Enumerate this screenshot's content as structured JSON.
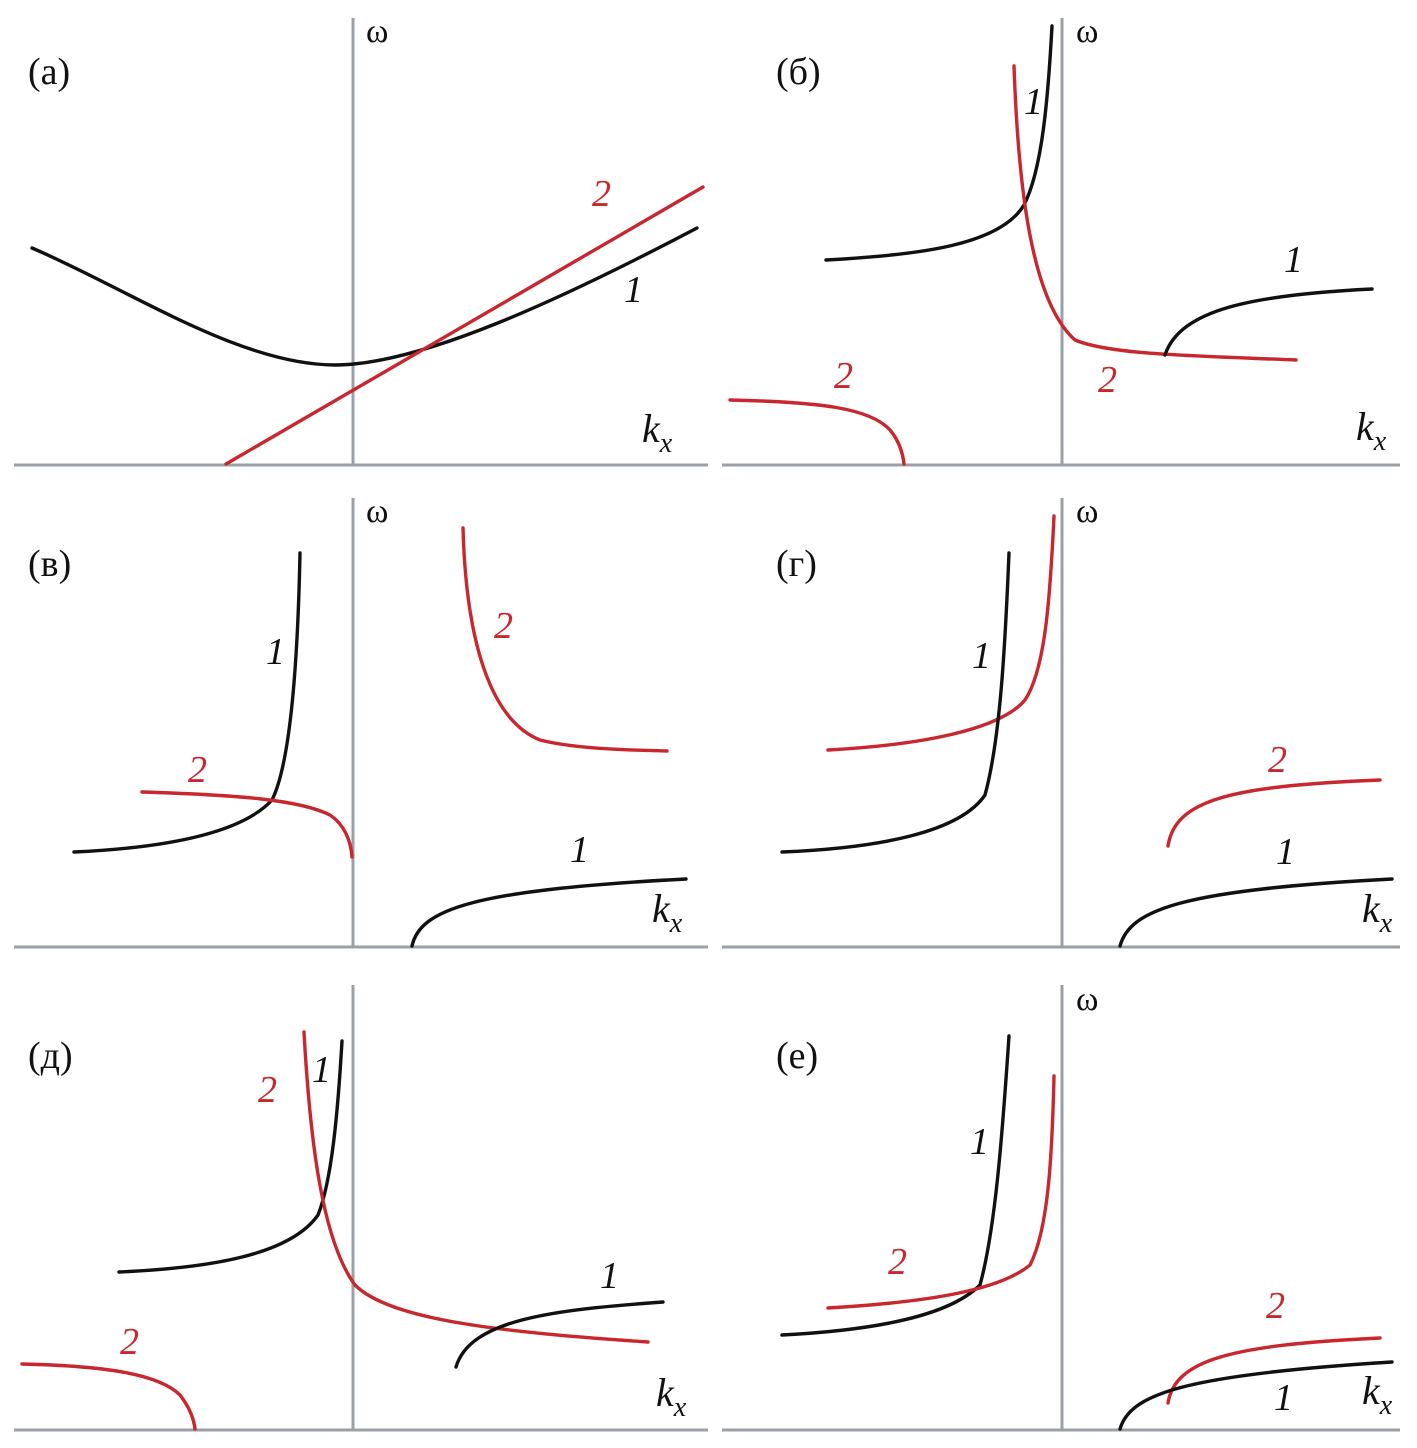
{
  "axes": {
    "y_label": "ω",
    "x_label_main": "k",
    "x_label_sub": "x"
  },
  "panels": [
    {
      "id": "a",
      "label": "(а)"
    },
    {
      "id": "b",
      "label": "(б)"
    },
    {
      "id": "v",
      "label": "(в)"
    },
    {
      "id": "g",
      "label": "(г)"
    },
    {
      "id": "d",
      "label": "(д)"
    },
    {
      "id": "e",
      "label": "(е)"
    }
  ],
  "curve_labels": {
    "one": "1",
    "two": "2"
  },
  "colors": {
    "curve_1": "#111111",
    "curve_2": "#c8272d",
    "axis": "#9aa0a6"
  }
}
